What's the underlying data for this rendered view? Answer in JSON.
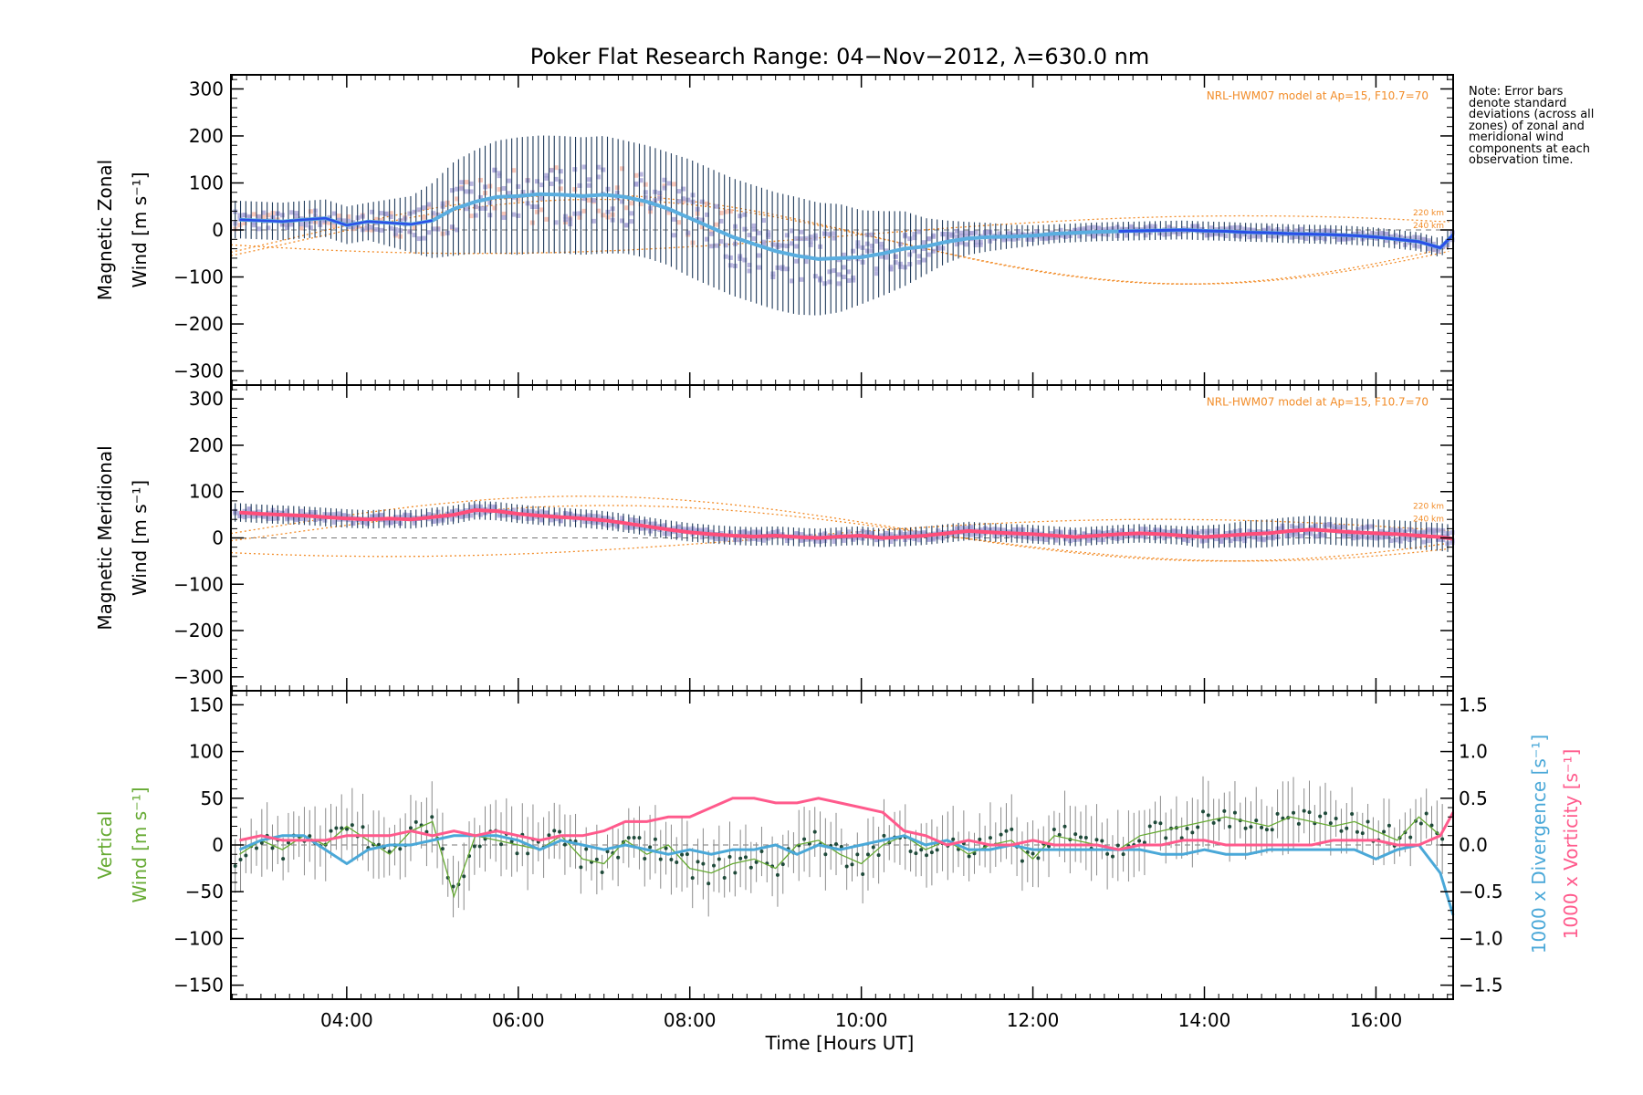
{
  "title": "Poker Flat Research Range: 04−Nov−2012, λ=630.0 nm",
  "note": "Note: Error bars denote standard deviations (across all zones) of zonal and meridional wind components at each observation time.",
  "colors": {
    "zonal": "#2b4fe8",
    "zonal_light": "#5aaee0",
    "meridional": "#ff4d7a",
    "vertical": "#66aa33",
    "divergence": "#4aa8d8",
    "vorticity": "#ff5a8c",
    "model": "#f28c28",
    "scatter": "#a9a4d8",
    "errorbar": "#1f3a5a"
  },
  "chart_data": [
    {
      "type": "line",
      "panel": "zonal",
      "ylabel_line1": "Magnetic Zonal",
      "ylabel_line2": "Wind [m s⁻¹]",
      "ylim": [
        -330,
        330
      ],
      "yticks": [
        300,
        200,
        100,
        0,
        -100,
        -200,
        -300
      ],
      "model_label": "NRL-HWM07 model at Ap=15, F10.7=70",
      "alt_labels": [
        "220 km",
        "240 km"
      ],
      "series": [
        {
          "x": [
            2.75,
            3.0,
            3.25,
            3.5,
            3.75,
            4.0,
            4.25,
            4.5,
            4.75,
            5.0,
            5.25,
            5.5,
            5.75,
            6.0,
            6.25,
            6.5,
            6.75,
            7.0,
            7.25,
            7.5,
            7.75,
            8.0,
            8.25,
            8.5,
            8.75,
            9.0,
            9.25,
            9.5,
            9.75,
            10.0,
            10.25,
            10.5,
            10.75,
            11.0,
            11.25,
            11.5,
            11.75,
            12.0,
            12.25,
            12.5,
            12.75,
            13.0,
            13.25,
            13.5,
            13.75,
            14.0,
            14.25,
            14.5,
            14.75,
            15.0,
            15.25,
            15.5,
            15.75,
            16.0,
            16.25,
            16.5,
            16.75,
            16.9
          ],
          "y": [
            22,
            20,
            18,
            22,
            25,
            10,
            18,
            15,
            12,
            20,
            45,
            60,
            70,
            72,
            76,
            75,
            72,
            75,
            70,
            60,
            45,
            25,
            5,
            -15,
            -30,
            -45,
            -55,
            -62,
            -60,
            -58,
            -50,
            -40,
            -35,
            -25,
            -18,
            -15,
            -14,
            -12,
            -8,
            -6,
            -4,
            -3,
            -2,
            -1,
            0,
            -2,
            -3,
            -5,
            -6,
            -8,
            -9,
            -10,
            -12,
            -15,
            -20,
            -25,
            -38,
            -10
          ]
        }
      ],
      "errorbar_sigma": [
        40,
        40,
        40,
        40,
        40,
        40,
        40,
        50,
        60,
        80,
        100,
        110,
        120,
        125,
        125,
        125,
        125,
        125,
        120,
        120,
        120,
        125,
        125,
        125,
        125,
        125,
        125,
        120,
        115,
        100,
        90,
        80,
        60,
        45,
        35,
        30,
        25,
        22,
        20,
        20,
        20,
        20,
        20,
        20,
        20,
        20,
        20,
        20,
        20,
        20,
        20,
        20,
        20,
        20,
        20,
        20,
        20,
        20
      ]
    },
    {
      "type": "line",
      "panel": "meridional",
      "ylabel_line1": "Magnetic Meridional",
      "ylabel_line2": "Wind [m s⁻¹]",
      "ylim": [
        -330,
        330
      ],
      "yticks": [
        300,
        200,
        100,
        0,
        -100,
        -200,
        -300
      ],
      "model_label": "NRL-HWM07 model at Ap=15, F10.7=70",
      "alt_labels": [
        "220 km",
        "240 km"
      ],
      "series": [
        {
          "x": [
            2.75,
            3.0,
            3.25,
            3.5,
            3.75,
            4.0,
            4.25,
            4.5,
            4.75,
            5.0,
            5.25,
            5.5,
            5.75,
            6.0,
            6.25,
            6.5,
            6.75,
            7.0,
            7.25,
            7.5,
            7.75,
            8.0,
            8.25,
            8.5,
            8.75,
            9.0,
            9.25,
            9.5,
            9.75,
            10.0,
            10.25,
            10.5,
            10.75,
            11.0,
            11.25,
            11.5,
            11.75,
            12.0,
            12.25,
            12.5,
            12.75,
            13.0,
            13.25,
            13.5,
            13.75,
            14.0,
            14.25,
            14.5,
            14.75,
            15.0,
            15.25,
            15.5,
            15.75,
            16.0,
            16.25,
            16.5,
            16.75,
            16.9
          ],
          "y": [
            55,
            52,
            50,
            48,
            45,
            42,
            40,
            42,
            40,
            45,
            50,
            60,
            58,
            52,
            48,
            45,
            42,
            38,
            32,
            25,
            18,
            12,
            8,
            5,
            3,
            5,
            2,
            0,
            3,
            5,
            0,
            2,
            5,
            10,
            15,
            12,
            10,
            8,
            5,
            2,
            5,
            8,
            10,
            8,
            5,
            2,
            5,
            8,
            10,
            15,
            18,
            15,
            12,
            10,
            8,
            5,
            2,
            -2
          ]
        }
      ],
      "errorbar_sigma": [
        20,
        20,
        20,
        20,
        20,
        20,
        20,
        20,
        20,
        20,
        20,
        20,
        20,
        20,
        20,
        20,
        20,
        20,
        20,
        20,
        20,
        20,
        20,
        20,
        20,
        20,
        20,
        20,
        20,
        20,
        20,
        20,
        20,
        20,
        20,
        20,
        20,
        20,
        20,
        20,
        20,
        20,
        20,
        20,
        20,
        25,
        25,
        30,
        30,
        30,
        30,
        30,
        30,
        30,
        30,
        30,
        30,
        30
      ]
    },
    {
      "type": "line",
      "panel": "vertical",
      "ylabel_line1": "Vertical",
      "ylabel_line2": "Wind [m s⁻¹]",
      "ylim": [
        -165,
        165
      ],
      "yticks": [
        150,
        100,
        50,
        0,
        -50,
        -100,
        -150
      ],
      "y2_label_divergence": "1000 x Divergence [s⁻¹]",
      "y2_label_vorticity": "1000 x Vorticity [s⁻¹]",
      "y2lim": [
        -1.65,
        1.65
      ],
      "y2ticks": [
        1.5,
        1.0,
        0.5,
        0.0,
        -0.5,
        -1.0,
        -1.5
      ],
      "series": [
        {
          "name": "vertical",
          "x": [
            2.75,
            3.0,
            3.25,
            3.5,
            3.75,
            4.0,
            4.25,
            4.5,
            4.75,
            5.0,
            5.25,
            5.5,
            5.75,
            6.0,
            6.25,
            6.5,
            6.75,
            7.0,
            7.25,
            7.5,
            7.75,
            8.0,
            8.25,
            8.5,
            8.75,
            9.0,
            9.25,
            9.5,
            9.75,
            10.0,
            10.25,
            10.5,
            10.75,
            11.0,
            11.25,
            11.5,
            11.75,
            12.0,
            12.25,
            12.5,
            12.75,
            13.0,
            13.25,
            13.5,
            13.75,
            14.0,
            14.25,
            14.5,
            14.75,
            15.0,
            15.25,
            15.5,
            15.75,
            16.0,
            16.25,
            16.5,
            16.75
          ],
          "y": [
            -10,
            5,
            -5,
            10,
            0,
            20,
            5,
            -10,
            15,
            25,
            -55,
            10,
            5,
            0,
            -5,
            10,
            -15,
            -20,
            5,
            -10,
            0,
            -25,
            -30,
            -20,
            -15,
            -25,
            0,
            5,
            -10,
            -20,
            0,
            10,
            -5,
            5,
            -10,
            0,
            5,
            -15,
            10,
            5,
            0,
            -5,
            10,
            15,
            20,
            25,
            30,
            25,
            20,
            30,
            25,
            20,
            25,
            15,
            5,
            30,
            10
          ]
        },
        {
          "name": "divergence",
          "x": [
            2.75,
            3.0,
            3.25,
            3.5,
            3.75,
            4.0,
            4.25,
            4.5,
            4.75,
            5.0,
            5.25,
            5.5,
            5.75,
            6.0,
            6.25,
            6.5,
            6.75,
            7.0,
            7.25,
            7.5,
            7.75,
            8.0,
            8.25,
            8.5,
            8.75,
            9.0,
            9.25,
            9.5,
            9.75,
            10.0,
            10.25,
            10.5,
            10.75,
            11.0,
            11.25,
            11.5,
            11.75,
            12.0,
            12.25,
            12.5,
            12.75,
            13.0,
            13.25,
            13.5,
            13.75,
            14.0,
            14.25,
            14.5,
            14.75,
            15.0,
            15.25,
            15.5,
            15.75,
            16.0,
            16.25,
            16.5,
            16.75,
            16.9
          ],
          "y": [
            -0.05,
            0.05,
            0.1,
            0.1,
            -0.05,
            -0.2,
            -0.05,
            0.0,
            0.0,
            0.05,
            0.1,
            0.1,
            0.1,
            0.05,
            -0.05,
            0.05,
            0.0,
            -0.05,
            0.0,
            -0.05,
            -0.1,
            -0.05,
            -0.1,
            -0.05,
            -0.05,
            0.0,
            -0.1,
            0.0,
            -0.05,
            0.0,
            0.05,
            0.1,
            0.0,
            0.05,
            -0.05,
            -0.05,
            0.0,
            -0.05,
            -0.05,
            -0.05,
            -0.05,
            -0.05,
            -0.05,
            -0.1,
            -0.1,
            -0.05,
            -0.1,
            -0.1,
            -0.05,
            -0.05,
            -0.05,
            -0.05,
            -0.05,
            -0.15,
            -0.05,
            0.0,
            -0.3,
            -0.75
          ]
        },
        {
          "name": "vorticity",
          "x": [
            2.75,
            3.0,
            3.25,
            3.5,
            3.75,
            4.0,
            4.25,
            4.5,
            4.75,
            5.0,
            5.25,
            5.5,
            5.75,
            6.0,
            6.25,
            6.5,
            6.75,
            7.0,
            7.25,
            7.5,
            7.75,
            8.0,
            8.25,
            8.5,
            8.75,
            9.0,
            9.25,
            9.5,
            9.75,
            10.0,
            10.25,
            10.5,
            10.75,
            11.0,
            11.25,
            11.5,
            11.75,
            12.0,
            12.25,
            12.5,
            12.75,
            13.0,
            13.25,
            13.5,
            13.75,
            14.0,
            14.25,
            14.5,
            14.75,
            15.0,
            15.25,
            15.5,
            15.75,
            16.0,
            16.25,
            16.5,
            16.75,
            16.9
          ],
          "y": [
            0.05,
            0.1,
            0.05,
            0.05,
            0.05,
            0.1,
            0.1,
            0.1,
            0.15,
            0.1,
            0.15,
            0.1,
            0.15,
            0.1,
            0.05,
            0.1,
            0.1,
            0.15,
            0.25,
            0.25,
            0.3,
            0.3,
            0.4,
            0.5,
            0.5,
            0.45,
            0.45,
            0.5,
            0.45,
            0.4,
            0.35,
            0.15,
            0.1,
            0.0,
            0.05,
            0.0,
            0.0,
            0.05,
            0.0,
            0.0,
            0.0,
            -0.05,
            0.0,
            0.0,
            0.05,
            0.05,
            0.0,
            0.0,
            0.0,
            0.0,
            0.0,
            0.05,
            0.05,
            0.05,
            0.0,
            0.0,
            0.1,
            0.35
          ]
        }
      ],
      "errorbar_sigma": [
        25,
        25,
        25,
        25,
        25,
        25,
        25,
        25,
        25,
        25,
        25,
        25,
        25,
        25,
        25,
        25,
        25,
        25,
        25,
        25,
        25,
        25,
        25,
        25,
        25,
        25,
        25,
        25,
        25,
        25,
        25,
        25,
        25,
        25,
        25,
        25,
        25,
        25,
        25,
        25,
        25,
        25,
        25,
        25,
        25,
        25,
        25,
        25,
        25,
        25,
        25,
        25,
        25,
        25,
        25,
        25,
        25
      ]
    }
  ],
  "xaxis": {
    "label": "Time [Hours UT]",
    "xlim": [
      2.65,
      16.9
    ],
    "ticks": [
      4,
      6,
      8,
      10,
      12,
      14,
      16
    ],
    "tick_labels": [
      "04:00",
      "06:00",
      "08:00",
      "10:00",
      "12:00",
      "14:00",
      "16:00"
    ]
  }
}
